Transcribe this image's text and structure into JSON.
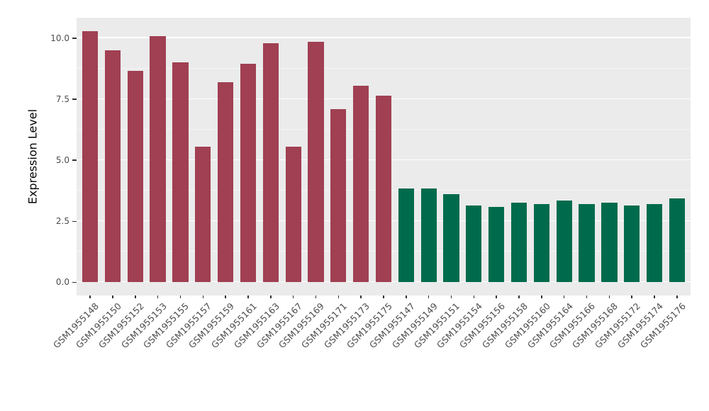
{
  "chart_data": {
    "type": "bar",
    "title": "",
    "xlabel": "",
    "ylabel": "Expression Level",
    "ylim": [
      0,
      10.3
    ],
    "yticks": [
      0,
      2.5,
      5,
      7.5,
      10
    ],
    "ytick_labels": [
      "0.0",
      "2.5",
      "5.0",
      "7.5",
      "10.0"
    ],
    "yticks_minor": [
      1.25,
      3.75,
      6.25,
      8.75
    ],
    "grid": "on",
    "legend": "none",
    "categories": [
      "GSM1955148",
      "GSM1955150",
      "GSM1955152",
      "GSM1955153",
      "GSM1955155",
      "GSM1955157",
      "GSM1955159",
      "GSM1955161",
      "GSM1955163",
      "GSM1955167",
      "GSM1955169",
      "GSM1955171",
      "GSM1955173",
      "GSM1955175",
      "GSM1955147",
      "GSM1955149",
      "GSM1955151",
      "GSM1955154",
      "GSM1955156",
      "GSM1955158",
      "GSM1955160",
      "GSM1955164",
      "GSM1955166",
      "GSM1955168",
      "GSM1955172",
      "GSM1955174",
      "GSM1955176"
    ],
    "values": [
      10.3,
      9.5,
      8.65,
      10.1,
      9.0,
      5.55,
      8.2,
      8.95,
      9.8,
      5.55,
      9.85,
      7.1,
      8.05,
      7.65,
      3.85,
      3.85,
      3.6,
      3.15,
      3.1,
      3.25,
      3.2,
      3.35,
      3.2,
      3.25,
      3.15,
      3.2,
      3.45
    ],
    "groups": [
      {
        "name": "group-red",
        "color": "#A04052",
        "count": 14
      },
      {
        "name": "group-green",
        "color": "#006B4C",
        "count": 13
      }
    ],
    "colors": {
      "panel_bg": "#EBEBEB",
      "grid": "#FFFFFF",
      "axis_text": "#4D4D4D",
      "axis_title": "#000000",
      "bar_left": "#A04052",
      "bar_right": "#006B4C"
    }
  }
}
